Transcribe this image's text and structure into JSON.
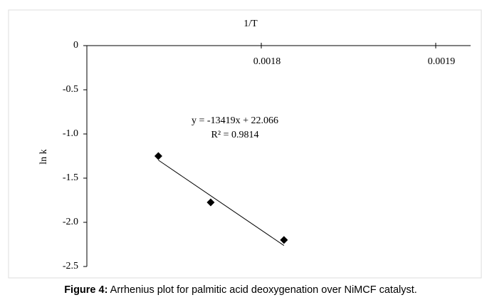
{
  "chart_data": {
    "type": "scatter",
    "x_label": "1/T",
    "y_label": "ln k",
    "x": [
      0.001741,
      0.001771,
      0.001813
    ],
    "values": [
      -1.25,
      -1.774,
      -2.2
    ],
    "color": "#000000",
    "xlim": [
      0.0017,
      0.00192
    ],
    "xticks": [
      0.0018,
      0.0019
    ],
    "ylim": [
      -2.5,
      0
    ],
    "yticks": [
      0,
      -0.5,
      {
        "value": -1,
        "label": "-1.0"
      },
      -1.5,
      {
        "value": -2,
        "label": "-2.0"
      },
      -2.5
    ],
    "trendline": {
      "slope": -13419,
      "intercept": 22.066
    },
    "annotations": [
      "y = -13419x + 22.066",
      "R² = 0.9814"
    ],
    "caption_label": "Figure 4:",
    "caption_text": " Arrhenius plot for palmitic acid deoxygenation over NiMCF catalyst."
  }
}
